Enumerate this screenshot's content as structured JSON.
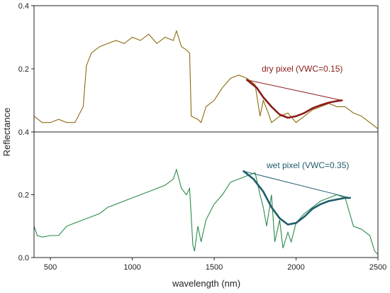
{
  "chart_data": {
    "type": "line",
    "xlabel": "wavelength (nm)",
    "ylabel": "Reflectance",
    "xlim": [
      400,
      2500
    ],
    "x_ticks": [
      500,
      1000,
      1500,
      2000,
      2500
    ],
    "colors": {
      "dry": "#8b6a0c",
      "dry_fit": "#8b1a1a",
      "dry_label": "#8b1a1a",
      "wet": "#2a8a4a",
      "wet_fit": "#1f5c6c",
      "wet_label": "#1f5c6c"
    },
    "panels": [
      {
        "id": "top",
        "ylim": [
          0.0,
          0.4
        ],
        "y_ticks": [
          0.2,
          0.4
        ],
        "y_tick_labels": [
          "0.2",
          "0.4"
        ],
        "annotation": "dry pixel (VWC=0.15)",
        "spectrum": {
          "x": [
            400,
            450,
            500,
            550,
            600,
            650,
            700,
            720,
            750,
            800,
            850,
            900,
            950,
            1000,
            1050,
            1100,
            1150,
            1200,
            1250,
            1270,
            1300,
            1330,
            1350,
            1360,
            1400,
            1420,
            1450,
            1500,
            1550,
            1600,
            1650,
            1700,
            1750,
            1780,
            1800,
            1830,
            1850,
            1900,
            1950,
            2000,
            2050,
            2100,
            2150,
            2200,
            2250,
            2300,
            2350,
            2400,
            2450,
            2500
          ],
          "y": [
            0.05,
            0.03,
            0.03,
            0.04,
            0.03,
            0.03,
            0.08,
            0.21,
            0.25,
            0.27,
            0.28,
            0.29,
            0.28,
            0.3,
            0.29,
            0.31,
            0.28,
            0.3,
            0.29,
            0.32,
            0.27,
            0.26,
            0.25,
            0.05,
            0.04,
            0.03,
            0.08,
            0.1,
            0.14,
            0.17,
            0.18,
            0.17,
            0.15,
            0.05,
            0.1,
            0.06,
            0.03,
            0.05,
            0.06,
            0.03,
            0.05,
            0.07,
            0.08,
            0.09,
            0.08,
            0.08,
            0.06,
            0.05,
            0.03,
            0.01
          ]
        },
        "hull": {
          "x": [
            1700,
            2280
          ],
          "y": [
            0.165,
            0.1
          ]
        },
        "fit": {
          "x": [
            1700,
            1760,
            1800,
            1850,
            1900,
            1950,
            2000,
            2050,
            2100,
            2150,
            2200,
            2250,
            2280
          ],
          "y": [
            0.165,
            0.14,
            0.11,
            0.08,
            0.055,
            0.045,
            0.05,
            0.06,
            0.075,
            0.085,
            0.093,
            0.098,
            0.1
          ]
        }
      },
      {
        "id": "bottom",
        "ylim": [
          0.0,
          0.4
        ],
        "y_ticks": [
          0.0,
          0.2,
          0.4
        ],
        "y_tick_labels": [
          "0.0",
          "0.2",
          "0.4"
        ],
        "annotation": "wet pixel (VWC=0.35)",
        "spectrum": {
          "x": [
            400,
            420,
            450,
            500,
            550,
            600,
            650,
            700,
            750,
            800,
            850,
            900,
            950,
            1000,
            1050,
            1100,
            1150,
            1200,
            1250,
            1270,
            1300,
            1330,
            1350,
            1370,
            1380,
            1400,
            1420,
            1450,
            1500,
            1550,
            1600,
            1650,
            1700,
            1750,
            1780,
            1800,
            1820,
            1850,
            1870,
            1900,
            1920,
            1950,
            1970,
            2000,
            2050,
            2100,
            2150,
            2200,
            2250,
            2300,
            2350,
            2400,
            2450,
            2480,
            2500
          ],
          "y": [
            0.1,
            0.07,
            0.065,
            0.07,
            0.07,
            0.1,
            0.11,
            0.12,
            0.13,
            0.14,
            0.16,
            0.17,
            0.18,
            0.19,
            0.2,
            0.21,
            0.22,
            0.23,
            0.25,
            0.28,
            0.22,
            0.2,
            0.22,
            0.04,
            0.02,
            0.1,
            0.05,
            0.12,
            0.17,
            0.2,
            0.24,
            0.25,
            0.26,
            0.27,
            0.2,
            0.16,
            0.1,
            0.2,
            0.05,
            0.12,
            0.03,
            0.08,
            0.05,
            0.11,
            0.14,
            0.16,
            0.18,
            0.19,
            0.2,
            0.19,
            0.1,
            0.09,
            0.07,
            0.02,
            0.01
          ]
        },
        "hull": {
          "x": [
            1680,
            2330
          ],
          "y": [
            0.275,
            0.19
          ]
        },
        "fit": {
          "x": [
            1680,
            1740,
            1800,
            1850,
            1900,
            1950,
            2000,
            2050,
            2100,
            2150,
            2200,
            2250,
            2300,
            2330
          ],
          "y": [
            0.275,
            0.25,
            0.21,
            0.16,
            0.125,
            0.105,
            0.11,
            0.13,
            0.155,
            0.17,
            0.18,
            0.185,
            0.19,
            0.19
          ]
        }
      }
    ]
  }
}
